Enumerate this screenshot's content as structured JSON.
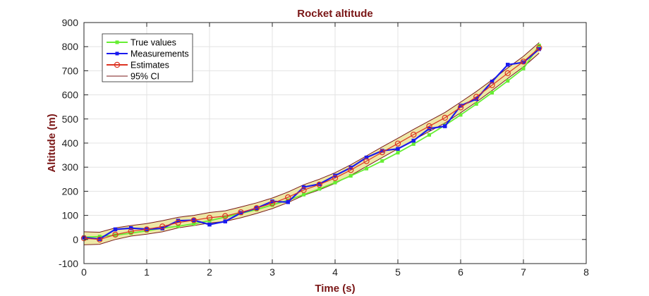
{
  "chart_data": {
    "type": "line",
    "title": "Rocket altitude",
    "xlabel": "Time (s)",
    "ylabel": "Altitude (m)",
    "xlim": [
      0,
      8
    ],
    "ylim": [
      -100,
      900
    ],
    "xticks": [
      0,
      1,
      2,
      3,
      4,
      5,
      6,
      7,
      8
    ],
    "yticks": [
      -100,
      0,
      100,
      200,
      300,
      400,
      500,
      600,
      700,
      800,
      900
    ],
    "grid": true,
    "legend_position": "top-left",
    "x": [
      0,
      0.25,
      0.5,
      0.75,
      1.0,
      1.25,
      1.5,
      1.75,
      2.0,
      2.25,
      2.5,
      2.75,
      3.0,
      3.25,
      3.5,
      3.75,
      4.0,
      4.25,
      4.5,
      4.75,
      5.0,
      5.25,
      5.5,
      5.75,
      6.0,
      6.25,
      6.5,
      6.75,
      7.0,
      7.25
    ],
    "series": [
      {
        "name": "True values",
        "color": "#66ee33",
        "marker": "square",
        "values": [
          10,
          12,
          18,
          26,
          36,
          47,
          55,
          65,
          78,
          93,
          108,
          124,
          143,
          163,
          186,
          210,
          236,
          264,
          294,
          326,
          360,
          396,
          434,
          474,
          517,
          562,
          609,
          658,
          709,
          805
        ]
      },
      {
        "name": "Measurements",
        "color": "#1a1aee",
        "marker": "square",
        "values": [
          8,
          2,
          42,
          47,
          43,
          46,
          78,
          80,
          62,
          75,
          110,
          130,
          158,
          155,
          217,
          230,
          265,
          298,
          340,
          368,
          376,
          410,
          460,
          470,
          555,
          583,
          655,
          725,
          735,
          790
        ]
      },
      {
        "name": "Estimates",
        "color": "#dd3322",
        "marker": "circle",
        "values": [
          5,
          0,
          20,
          34,
          42,
          54,
          70,
          80,
          90,
          97,
          113,
          130,
          150,
          175,
          205,
          228,
          255,
          288,
          325,
          362,
          398,
          435,
          470,
          505,
          548,
          592,
          640,
          690,
          738,
          795
        ]
      }
    ],
    "confidence_band": {
      "name": "95% CI",
      "color": "#7a1a1a",
      "fill": "#e8e08a",
      "lower": [
        -22,
        -20,
        0,
        14,
        22,
        32,
        48,
        58,
        68,
        75,
        90,
        108,
        128,
        153,
        183,
        206,
        233,
        266,
        303,
        340,
        376,
        413,
        448,
        483,
        526,
        570,
        618,
        668,
        716,
        773
      ],
      "upper": [
        32,
        30,
        48,
        58,
        66,
        78,
        92,
        100,
        112,
        119,
        135,
        152,
        172,
        197,
        227,
        250,
        277,
        310,
        347,
        384,
        420,
        457,
        492,
        527,
        570,
        614,
        662,
        712,
        760,
        817
      ]
    }
  }
}
